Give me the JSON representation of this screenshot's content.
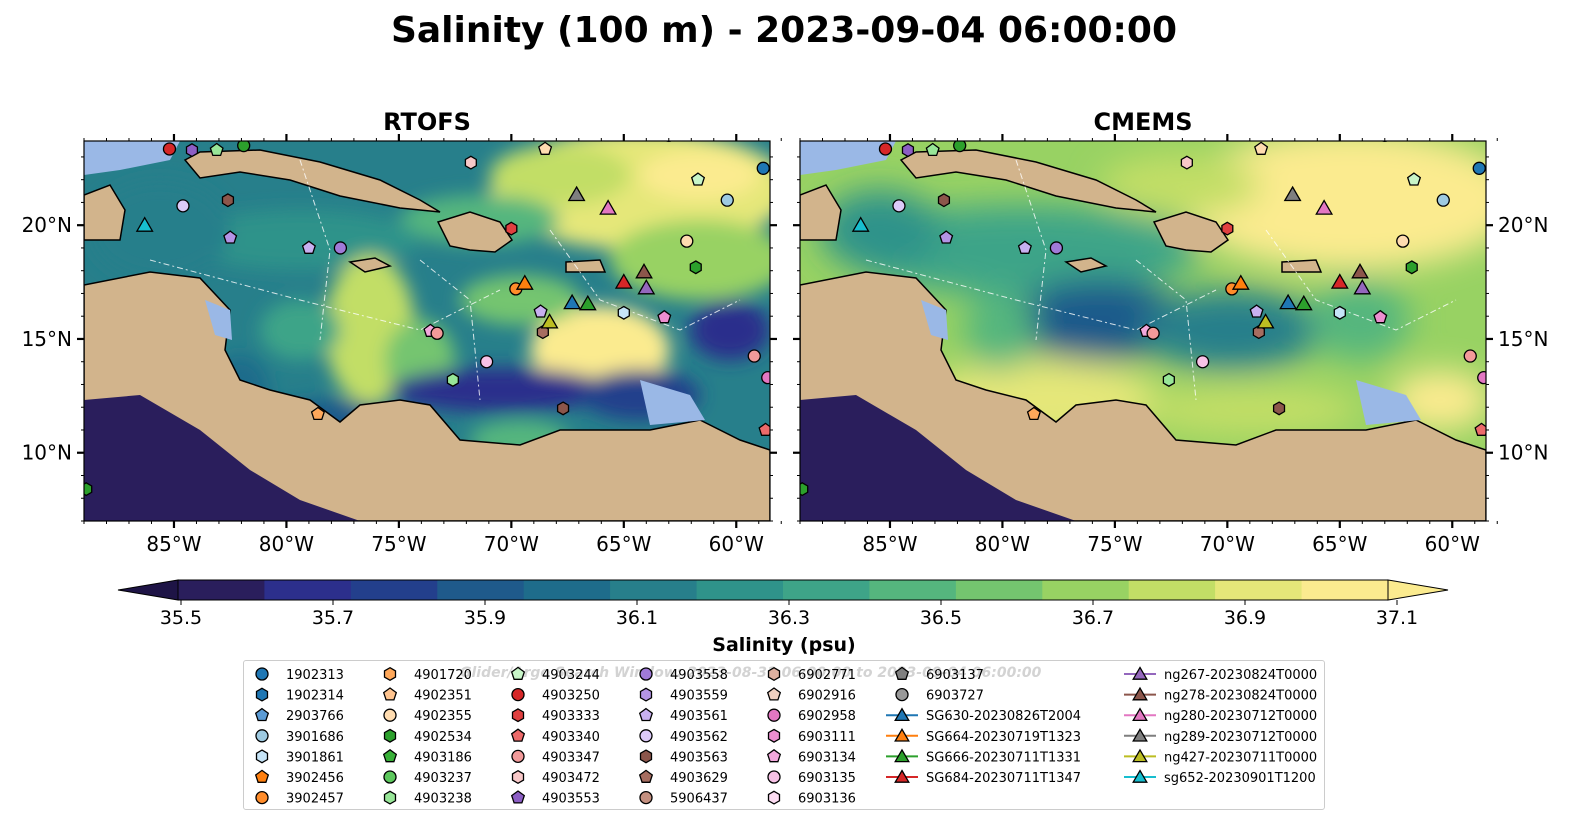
{
  "title": "Salinity (100 m) - 2023-09-04 06:00:00",
  "panels": [
    {
      "title": "RTOFS"
    },
    {
      "title": "CMEMS"
    }
  ],
  "axes": {
    "lon_ticks": [
      "85°W",
      "80°W",
      "75°W",
      "70°W",
      "65°W",
      "60°W"
    ],
    "lon_values": [
      -85,
      -80,
      -75,
      -70,
      -65,
      -60
    ],
    "lat_ticks": [
      "20°N",
      "15°N",
      "10°N"
    ],
    "lat_values": [
      20,
      15,
      10
    ],
    "lon_range": [
      -89,
      -58.5
    ],
    "lat_range": [
      7,
      23.7
    ]
  },
  "colorbar": {
    "label": "Salinity (psu)",
    "ticks": [
      "35.5",
      "35.7",
      "35.9",
      "36.1",
      "36.3",
      "36.5",
      "36.7",
      "36.9",
      "37.1"
    ],
    "range": [
      35.5,
      37.1
    ],
    "extend": "both",
    "colors": [
      "#2a1e5c",
      "#2c2f8c",
      "#233f8c",
      "#1f5a8b",
      "#1e6c8b",
      "#277f8b",
      "#2f938a",
      "#3ea488",
      "#55b67e",
      "#74c56f",
      "#98d263",
      "#c2de66",
      "#e5e779",
      "#fbeb8f"
    ]
  },
  "watermark": "Glider/Argo Search Window: 2023-08-31 06:00:00 to 2023-09-04 06:00:00",
  "legend": {
    "argo": [
      {
        "label": "1902313",
        "shape": "circle",
        "color": "#1f77b4"
      },
      {
        "label": "1902314",
        "shape": "hexagon",
        "color": "#1f77b4"
      },
      {
        "label": "2903766",
        "shape": "pentagon",
        "color": "#5b9bd5"
      },
      {
        "label": "3901686",
        "shape": "circle",
        "color": "#9ecae1"
      },
      {
        "label": "3901861",
        "shape": "hexagon",
        "color": "#c6e4f7"
      },
      {
        "label": "3902456",
        "shape": "pentagon",
        "color": "#ff7f0e"
      },
      {
        "label": "3902457",
        "shape": "circle",
        "color": "#ff8c2a"
      },
      {
        "label": "4901720",
        "shape": "hexagon",
        "color": "#ffa85a"
      },
      {
        "label": "4902351",
        "shape": "pentagon",
        "color": "#ffc48f"
      },
      {
        "label": "4902355",
        "shape": "circle",
        "color": "#ffdcb0"
      },
      {
        "label": "4902534",
        "shape": "hexagon",
        "color": "#2ca02c"
      },
      {
        "label": "4903186",
        "shape": "pentagon",
        "color": "#38b038"
      },
      {
        "label": "4903237",
        "shape": "circle",
        "color": "#5dc85d"
      },
      {
        "label": "4903238",
        "shape": "hexagon",
        "color": "#98e698"
      },
      {
        "label": "4903244",
        "shape": "pentagon",
        "color": "#c8f5c8"
      },
      {
        "label": "4903250",
        "shape": "circle",
        "color": "#d62728"
      },
      {
        "label": "4903333",
        "shape": "hexagon",
        "color": "#e04040"
      },
      {
        "label": "4903340",
        "shape": "pentagon",
        "color": "#ec6a6a"
      },
      {
        "label": "4903347",
        "shape": "circle",
        "color": "#f29a9a"
      },
      {
        "label": "4903472",
        "shape": "hexagon",
        "color": "#f8c8c8"
      },
      {
        "label": "4903553",
        "shape": "pentagon",
        "color": "#8c5ec4"
      },
      {
        "label": "4903558",
        "shape": "circle",
        "color": "#a07ad8"
      },
      {
        "label": "4903559",
        "shape": "hexagon",
        "color": "#b494e6"
      },
      {
        "label": "4903561",
        "shape": "pentagon",
        "color": "#c8b0f0"
      },
      {
        "label": "4903562",
        "shape": "circle",
        "color": "#dccaf8"
      },
      {
        "label": "4903563",
        "shape": "hexagon",
        "color": "#8c564b"
      },
      {
        "label": "4903629",
        "shape": "pentagon",
        "color": "#a66d60"
      },
      {
        "label": "5906437",
        "shape": "circle",
        "color": "#c49080"
      },
      {
        "label": "6902771",
        "shape": "hexagon",
        "color": "#dcb0a0"
      },
      {
        "label": "6902916",
        "shape": "pentagon",
        "color": "#f0d0c0"
      },
      {
        "label": "6902958",
        "shape": "circle",
        "color": "#e377c2"
      },
      {
        "label": "6903111",
        "shape": "hexagon",
        "color": "#ec8ed0"
      },
      {
        "label": "6903134",
        "shape": "pentagon",
        "color": "#f2a8dc"
      },
      {
        "label": "6903135",
        "shape": "circle",
        "color": "#f7c2e6"
      },
      {
        "label": "6903136",
        "shape": "hexagon",
        "color": "#fcdcf2"
      },
      {
        "label": "6903137",
        "shape": "pentagon",
        "color": "#7f7f7f"
      },
      {
        "label": "6903727",
        "shape": "circle",
        "color": "#999999"
      }
    ],
    "gliders": [
      {
        "label": "SG630-20230826T2004",
        "color": "#1f77b4"
      },
      {
        "label": "SG664-20230719T1323",
        "color": "#ff7f0e"
      },
      {
        "label": "SG666-20230711T1331",
        "color": "#2ca02c"
      },
      {
        "label": "SG684-20230711T1347",
        "color": "#d62728"
      },
      {
        "label": "ng267-20230824T0000",
        "color": "#9467bd"
      },
      {
        "label": "ng278-20230824T0000",
        "color": "#8c564b"
      },
      {
        "label": "ng280-20230712T0000",
        "color": "#e377c2"
      },
      {
        "label": "ng289-20230712T0000",
        "color": "#7f7f7f"
      },
      {
        "label": "ng427-20230711T0000",
        "color": "#bcbd22"
      },
      {
        "label": "sg652-20230901T1200",
        "color": "#17becf"
      }
    ]
  },
  "observations": [
    {
      "lon": -85.2,
      "lat": 23.35,
      "shape": "circle",
      "color": "#d62728"
    },
    {
      "lon": -84.2,
      "lat": 23.3,
      "shape": "hexagon",
      "color": "#8c5ec4"
    },
    {
      "lon": -83.1,
      "lat": 23.3,
      "shape": "pentagon",
      "color": "#98e698"
    },
    {
      "lon": -81.9,
      "lat": 23.5,
      "shape": "circle",
      "color": "#2ca02c"
    },
    {
      "lon": -84.6,
      "lat": 20.85,
      "shape": "circle",
      "color": "#dccaf8"
    },
    {
      "lon": -82.6,
      "lat": 21.1,
      "shape": "hexagon",
      "color": "#8c564b"
    },
    {
      "lon": -82.5,
      "lat": 19.45,
      "shape": "pentagon",
      "color": "#b494e6"
    },
    {
      "lon": -79.0,
      "lat": 19.0,
      "shape": "pentagon",
      "color": "#c8b0f0"
    },
    {
      "lon": -77.6,
      "lat": 19.0,
      "shape": "circle",
      "color": "#a07ad8"
    },
    {
      "lon": -71.8,
      "lat": 22.75,
      "shape": "hexagon",
      "color": "#f8c8c8"
    },
    {
      "lon": -68.5,
      "lat": 23.35,
      "shape": "pentagon",
      "color": "#ffdcb0"
    },
    {
      "lon": -63.0,
      "lat": 23.95,
      "shape": "circle",
      "color": "#1f77b4"
    },
    {
      "lon": -61.7,
      "lat": 22.0,
      "shape": "pentagon",
      "color": "#c8f5c8"
    },
    {
      "lon": -60.4,
      "lat": 21.1,
      "shape": "circle",
      "color": "#9ecae1"
    },
    {
      "lon": -58.8,
      "lat": 22.5,
      "shape": "circle",
      "color": "#1f77b4"
    },
    {
      "lon": -70.0,
      "lat": 19.85,
      "shape": "hexagon",
      "color": "#e04040"
    },
    {
      "lon": -62.2,
      "lat": 19.3,
      "shape": "circle",
      "color": "#ffdcb0"
    },
    {
      "lon": -61.8,
      "lat": 18.15,
      "shape": "hexagon",
      "color": "#2ca02c"
    },
    {
      "lon": -69.8,
      "lat": 17.2,
      "shape": "circle",
      "color": "#ff8c2a"
    },
    {
      "lon": -68.7,
      "lat": 16.2,
      "shape": "pentagon",
      "color": "#c8b0f0"
    },
    {
      "lon": -68.6,
      "lat": 15.3,
      "shape": "hexagon",
      "color": "#a66d60"
    },
    {
      "lon": -65.0,
      "lat": 16.15,
      "shape": "hexagon",
      "color": "#c6e4f7"
    },
    {
      "lon": -63.2,
      "lat": 15.95,
      "shape": "pentagon",
      "color": "#ec8ed0"
    },
    {
      "lon": -73.6,
      "lat": 15.35,
      "shape": "pentagon",
      "color": "#f2a8dc"
    },
    {
      "lon": -73.3,
      "lat": 15.25,
      "shape": "circle",
      "color": "#f29a9a"
    },
    {
      "lon": -71.1,
      "lat": 14.0,
      "shape": "circle",
      "color": "#f7c2e6"
    },
    {
      "lon": -72.6,
      "lat": 13.2,
      "shape": "hexagon",
      "color": "#98e698"
    },
    {
      "lon": -78.6,
      "lat": 11.7,
      "shape": "pentagon",
      "color": "#ffa85a"
    },
    {
      "lon": -67.7,
      "lat": 11.95,
      "shape": "hexagon",
      "color": "#8c564b"
    },
    {
      "lon": -59.2,
      "lat": 14.25,
      "shape": "circle",
      "color": "#f29a9a"
    },
    {
      "lon": -58.6,
      "lat": 13.3,
      "shape": "circle",
      "color": "#e377c2"
    },
    {
      "lon": -58.7,
      "lat": 11.0,
      "shape": "pentagon",
      "color": "#ec6a6a"
    },
    {
      "lon": -88.9,
      "lat": 8.4,
      "shape": "hexagon",
      "color": "#2ca02c"
    }
  ],
  "glider_positions": [
    {
      "lon": -86.3,
      "lat": 20.0,
      "color": "#17becf"
    },
    {
      "lon": -67.1,
      "lat": 21.35,
      "color": "#7f7f7f"
    },
    {
      "lon": -65.7,
      "lat": 20.75,
      "color": "#e377c2"
    },
    {
      "lon": -69.4,
      "lat": 17.45,
      "color": "#ff7f0e"
    },
    {
      "lon": -67.3,
      "lat": 16.6,
      "color": "#1f77b4"
    },
    {
      "lon": -66.6,
      "lat": 16.55,
      "color": "#2ca02c"
    },
    {
      "lon": -65.0,
      "lat": 17.5,
      "color": "#d62728"
    },
    {
      "lon": -64.1,
      "lat": 17.95,
      "color": "#8c564b"
    },
    {
      "lon": -64.0,
      "lat": 17.25,
      "color": "#9467bd"
    },
    {
      "lon": -68.3,
      "lat": 15.75,
      "color": "#bcbd22"
    }
  ]
}
